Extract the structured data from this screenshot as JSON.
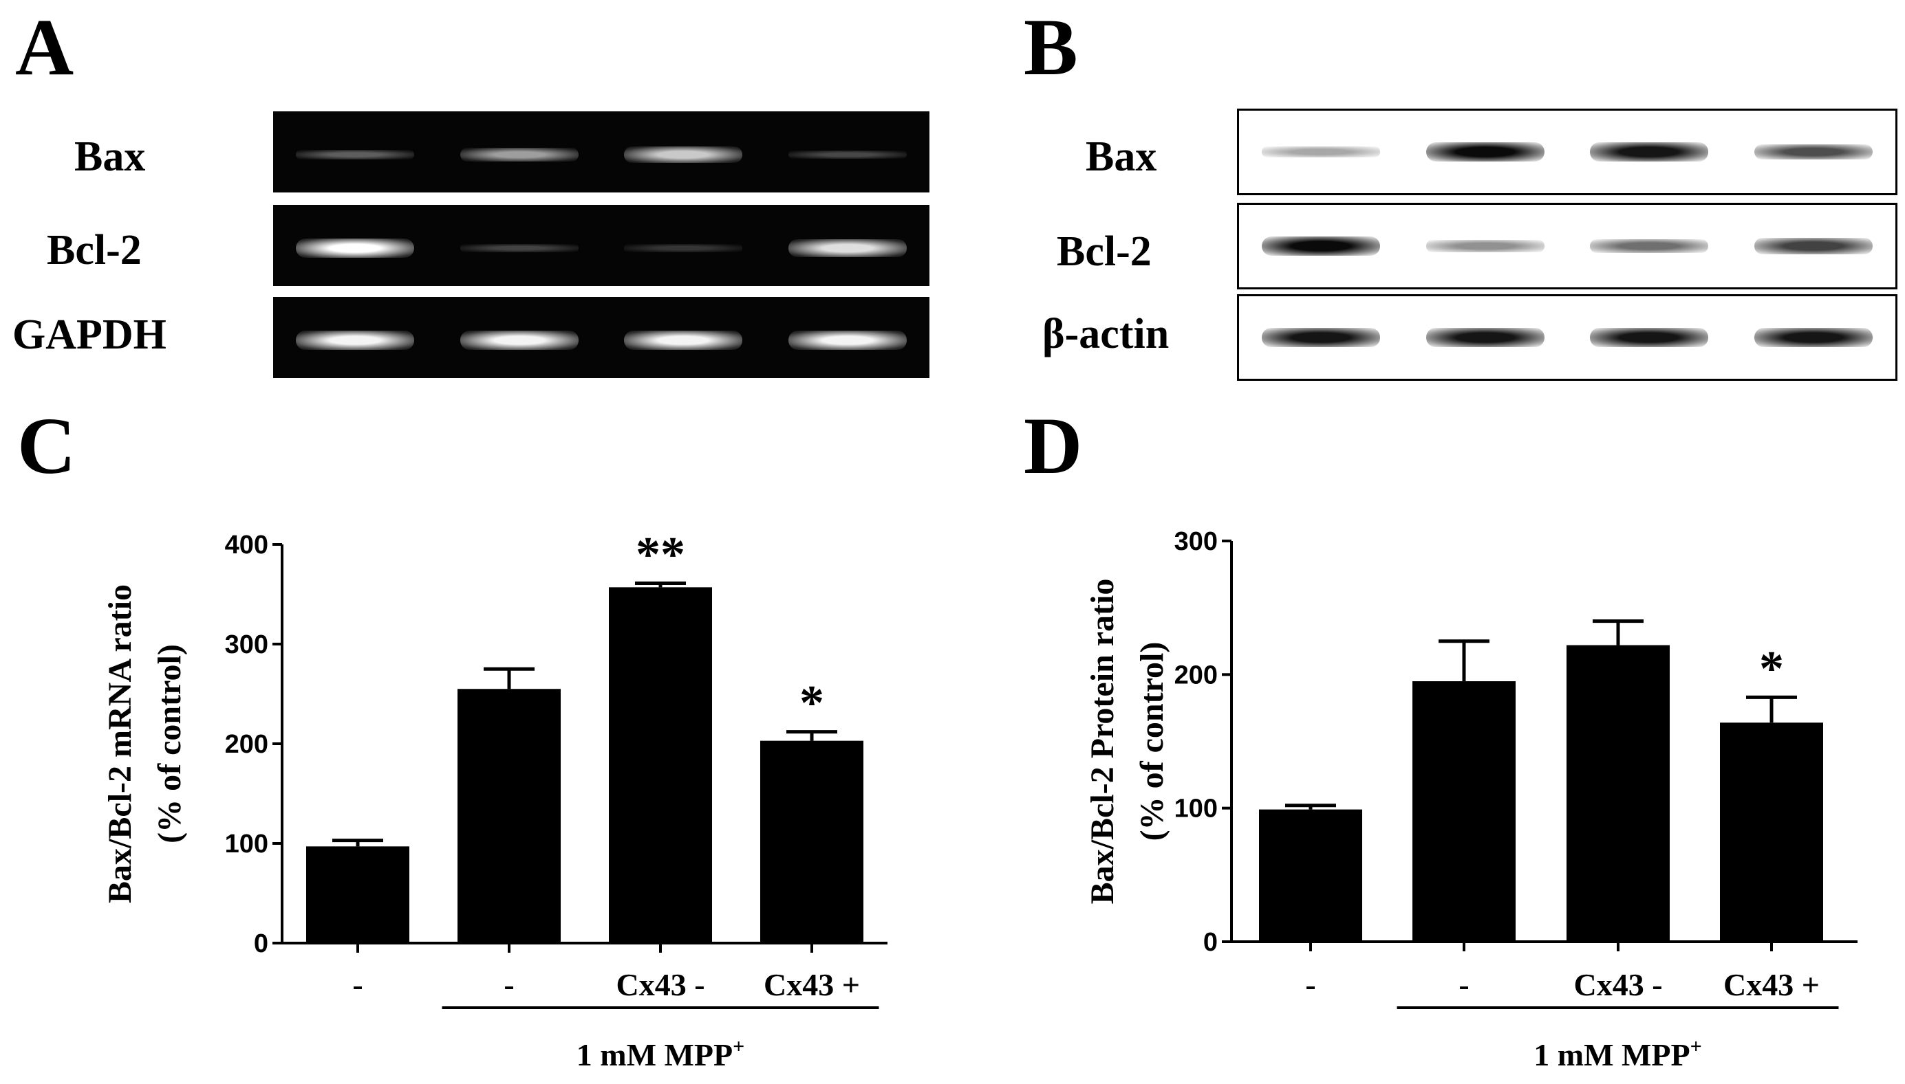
{
  "panels": {
    "A": {
      "letter": "A",
      "rows": [
        {
          "label": "Bax",
          "intensity": [
            0.25,
            0.55,
            0.75,
            0.15
          ]
        },
        {
          "label": "Bcl-2",
          "intensity": [
            1.0,
            0.12,
            0.06,
            0.85
          ]
        },
        {
          "label": "GAPDH",
          "intensity": [
            0.95,
            0.95,
            0.95,
            0.95
          ]
        }
      ]
    },
    "B": {
      "letter": "B",
      "rows": [
        {
          "label": "Bax",
          "intensity": [
            0.3,
            1.0,
            0.95,
            0.7
          ]
        },
        {
          "label": "Bcl-2",
          "intensity": [
            1.0,
            0.4,
            0.55,
            0.75
          ]
        },
        {
          "label": "β-actin",
          "intensity": [
            0.95,
            0.95,
            0.95,
            0.95
          ]
        }
      ]
    },
    "C": {
      "letter": "C"
    },
    "D": {
      "letter": "D"
    }
  },
  "chart_data": [
    {
      "type": "bar",
      "panel": "C",
      "ylabel_line1": "Bax/Bcl-2 mRNA  ratio",
      "ylabel_line2": "(% of control)",
      "ylim": [
        0,
        400
      ],
      "yticks": [
        0,
        100,
        200,
        300,
        400
      ],
      "categories": [
        "-",
        "-",
        "Cx43 -",
        "Cx43  +"
      ],
      "values": [
        97,
        255,
        357,
        203
      ],
      "errors": [
        6,
        20,
        4,
        9
      ],
      "significance": [
        "",
        "",
        "**",
        "*"
      ],
      "group_label": "1 mM MPP",
      "group_label_sup": "+",
      "group_bracket_from": 1,
      "group_bracket_to": 3
    },
    {
      "type": "bar",
      "panel": "D",
      "ylabel_line1": "Bax/Bcl-2 Protein ratio",
      "ylabel_line2": "(% of control)",
      "ylim": [
        0,
        300
      ],
      "yticks": [
        0,
        100,
        200,
        300
      ],
      "categories": [
        "-",
        "-",
        "Cx43 -",
        "Cx43  +"
      ],
      "values": [
        99,
        195,
        222,
        164
      ],
      "errors": [
        3,
        30,
        18,
        19
      ],
      "significance": [
        "",
        "",
        "",
        "*"
      ],
      "group_label": "1 mM MPP",
      "group_label_sup": "+",
      "group_bracket_from": 1,
      "group_bracket_to": 3
    }
  ]
}
